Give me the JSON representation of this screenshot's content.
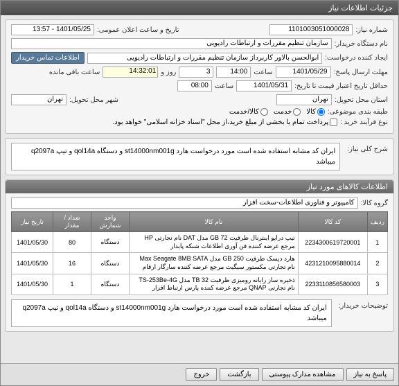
{
  "window_title": "جزئیات اطلاعات نیاز",
  "section1": {
    "title": "",
    "need_no_label": "شماره نیاز:",
    "need_no": "1101003051000028",
    "pub_date_label": "تاریخ و ساعت اعلان عمومی:",
    "pub_date": "1401/05/25 - 13:57",
    "buyer_org_label": "نام دستگاه خریدار:",
    "buyer_org": "سازمان تنظیم مقررات و ارتباطات رادیویی",
    "requester_label": "ایجاد کننده درخواست:",
    "requester": "ابوالحسن  بالاور کاربرداز سازمان تنظیم مقررات و ارتباطات رادیویی",
    "contact_btn": "اطلاعات تماس خریدار",
    "deadline_label": "مهلت ارسال پاسخ:",
    "deadline_date": "1401/05/29",
    "deadline_hour_label": "ساعت",
    "deadline_hour": "14:00",
    "remain_label": "روز و",
    "remain_days": "3",
    "remain_time": "14:32:01",
    "remain_suffix": "ساعت باقی مانده",
    "valid_until_label": "حداقل تاریخ اعتبار قیمت تا تاریخ:",
    "valid_date": "1401/05/31",
    "valid_hour_label": "ساعت",
    "valid_hour": "08:00",
    "loc_label": "استان محل تحویل:",
    "loc_province": "تهران",
    "loc_city_label": "شهر محل تحویل:",
    "loc_city": "تهران",
    "subject_class_label": "طبقه بندی موضوعی:",
    "class_options": [
      "کالا",
      "خدمت",
      "کالا/خدمت"
    ],
    "process_label": "نوع فرآیند خرید :",
    "process_options": [
      "پرداخت تمام یا بخشی از مبلغ خرید،از محل \"اسناد خزانه اسلامی\" خواهد بود."
    ]
  },
  "section2": {
    "need_desc_label": "شرح کلی نیاز:",
    "need_desc": "ایران کد مشابه استفاده شده است مورد درخواست هارد st14000nm001g و دستگاه qol14a و تیپ q2097a میباشد"
  },
  "section3": {
    "title": "اطلاعات کالاهای مورد نیاز",
    "group_label": "گروه کالا:",
    "group_value": "کامپیوتر و فناوری اطلاعات-سخت افزار",
    "cols": [
      "ردیف",
      "کد کالا",
      "نام کالا",
      "واحد شمارش",
      "تعداد / مقدار",
      "تاریخ نیاز"
    ],
    "rows": [
      {
        "n": "1",
        "code": "2234300619720001",
        "name": "تیپ درایو اینترنال ظرفیت GB 72 مدل DAT نام تجارتی HP مرجع عرضه کننده فن آوری اطلاعات شبکه پایدار",
        "unit": "دستگاه",
        "qty": "80",
        "date": "1401/05/30"
      },
      {
        "n": "2",
        "code": "4231210095880014",
        "name": "هارد دیسک ظرفیت GB 250 مدل Max Seagate 8MB SATA نام تجارتی مکستور سیگیت مرجع عرضه کننده سارگار ارقام",
        "unit": "دستگاه",
        "qty": "16",
        "date": "1401/05/30"
      },
      {
        "n": "3",
        "code": "2233110856580003",
        "name": "ذخیره ساز رایانه رومیزی ظرفیت TB 32 مدل TS-253Be-4G نام تجارتی QNAP مرجع عرضه کننده پارس ارتباط افزار",
        "unit": "دستگاه",
        "qty": "1",
        "date": "1401/05/30"
      }
    ],
    "notes_label": "توضیحات خریدار:",
    "notes": "ایران کد مشابه استفاده شده است مورد درخواست هارد st14000nm001g و دستگاه qol14a و تیپ q2097a میباشد"
  },
  "footer": {
    "respond": "پاسخ به نیاز",
    "view_docs": "مشاهده مدارک پیوستی",
    "back": "بازگشت",
    "exit": "خروج"
  }
}
